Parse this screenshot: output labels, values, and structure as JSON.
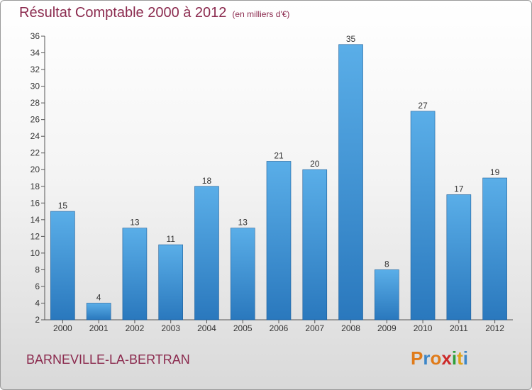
{
  "chart_data": {
    "type": "bar",
    "title": "Résultat Comptable 2000 à 2012",
    "subtitle": "(en milliers d'€)",
    "categories": [
      "2000",
      "2001",
      "2002",
      "2003",
      "2004",
      "2005",
      "2006",
      "2007",
      "2008",
      "2009",
      "2010",
      "2011",
      "2012"
    ],
    "values": [
      15,
      4,
      13,
      11,
      18,
      13,
      21,
      20,
      35,
      8,
      27,
      17,
      19
    ],
    "ylim": [
      2,
      36
    ],
    "yticks": [
      2,
      4,
      6,
      8,
      10,
      12,
      14,
      16,
      18,
      20,
      22,
      24,
      26,
      28,
      30,
      32,
      34,
      36
    ],
    "xlabel": "",
    "ylabel": "",
    "grid": false,
    "bar_color": "#4a9de0"
  },
  "footer": {
    "commune": "BARNEVILLE-LA-BERTRAN",
    "logo_letters": [
      "P",
      "r",
      "o",
      "x",
      "i",
      "t",
      "i"
    ],
    "logo_colors": [
      "#e07b1a",
      "#3c86c8",
      "#e07b1a",
      "#cc2a2a",
      "#2e9e3a",
      "#e0a21a",
      "#3c86c8"
    ]
  }
}
